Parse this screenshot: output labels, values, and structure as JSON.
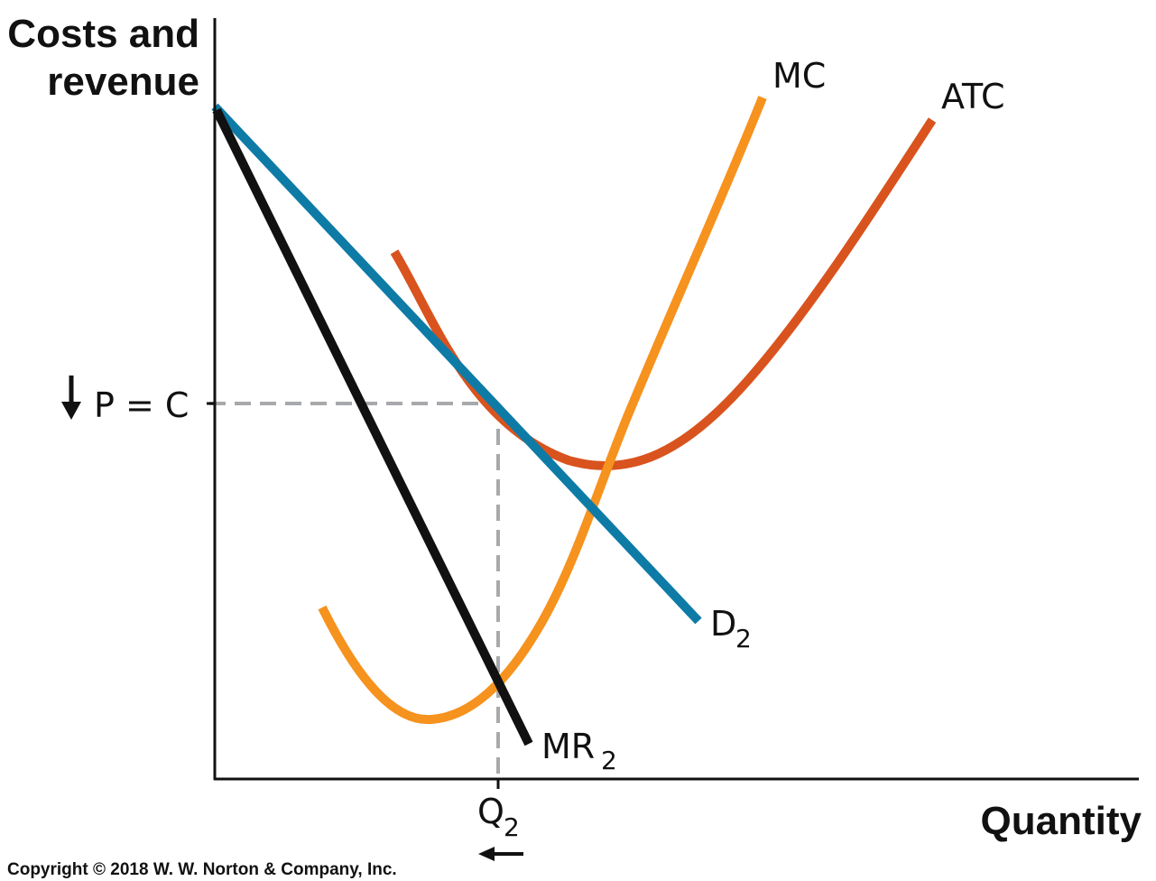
{
  "axes": {
    "y_title_line1": "Costs and",
    "y_title_line2": "revenue",
    "x_title": "Quantity"
  },
  "curves": {
    "mc": {
      "label": "MC",
      "color": "#F6921E"
    },
    "atc": {
      "label": "ATC",
      "color": "#D9531E"
    },
    "demand": {
      "label": "D",
      "subscript": "2",
      "color": "#0E7BA6"
    },
    "marginal_revenue": {
      "label": "MR",
      "subscript": "2",
      "color": "#111111"
    }
  },
  "markers": {
    "price_label": "P = C",
    "price_arrow": "down-arrow-icon",
    "quantity_label": "Q",
    "quantity_subscript": "2",
    "quantity_arrow": "left-arrow-icon",
    "guide_color": "#A7A9AC"
  },
  "copyright": "Copyright © 2018 W. W. Norton & Company, Inc."
}
